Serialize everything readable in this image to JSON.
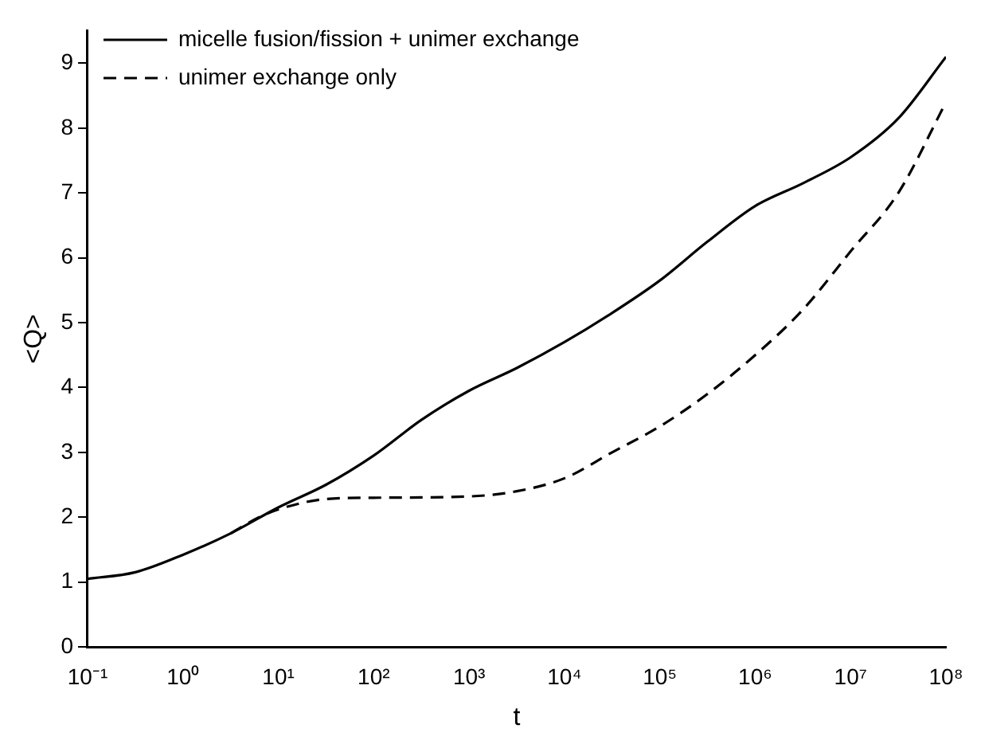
{
  "chart_data": {
    "type": "line",
    "xlabel": "t",
    "ylabel": "<Q>",
    "log": "x",
    "xlim": [
      0.1,
      100000000
    ],
    "ylim": [
      0,
      9.5
    ],
    "xticks": [
      {
        "value": 0.1,
        "label": "10⁻¹"
      },
      {
        "value": 1,
        "label": "10⁰"
      },
      {
        "value": 10,
        "label": "10¹"
      },
      {
        "value": 100,
        "label": "10²"
      },
      {
        "value": 1000,
        "label": "10³"
      },
      {
        "value": 10000,
        "label": "10⁴"
      },
      {
        "value": 100000,
        "label": "10⁵"
      },
      {
        "value": 1000000,
        "label": "10⁶"
      },
      {
        "value": 10000000,
        "label": "10⁷"
      },
      {
        "value": 100000000,
        "label": "10⁸"
      }
    ],
    "yticks": [
      0,
      1,
      2,
      3,
      4,
      5,
      6,
      7,
      8,
      9
    ],
    "grid": false,
    "legend": "top left",
    "marker": "none",
    "series": [
      {
        "name": "micelle fusion/fission + unimer exchange",
        "color": "#000000",
        "line_style": "solid",
        "x": [
          0.1,
          0.316,
          1,
          3.16,
          10,
          31.6,
          100,
          316,
          1000,
          3160,
          10000,
          31600,
          100000,
          316000,
          1000000,
          3160000,
          10000000,
          31600000,
          100000000
        ],
        "values": [
          1.05,
          1.15,
          1.42,
          1.75,
          2.15,
          2.5,
          2.95,
          3.5,
          3.95,
          4.3,
          4.7,
          5.15,
          5.65,
          6.25,
          6.8,
          7.15,
          7.55,
          8.15,
          9.1
        ]
      },
      {
        "name": "unimer exchange only",
        "color": "#000000",
        "line_style": "dashed",
        "x": [
          3.16,
          6.3,
          10,
          31.6,
          100,
          1000,
          3160,
          10000,
          31600,
          100000,
          316000,
          1000000,
          3160000,
          10000000,
          31600000,
          100000000
        ],
        "values": [
          1.75,
          2.0,
          2.12,
          2.28,
          2.3,
          2.32,
          2.4,
          2.6,
          3.0,
          3.4,
          3.9,
          4.5,
          5.2,
          6.1,
          7.0,
          8.4
        ]
      }
    ]
  }
}
